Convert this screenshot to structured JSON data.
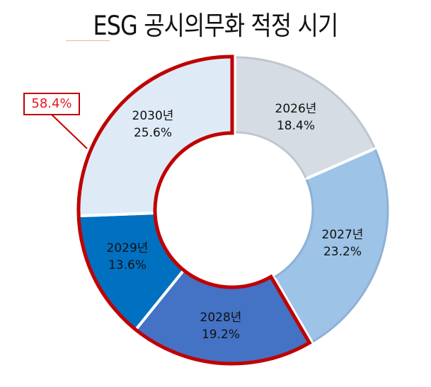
{
  "title": "ESG 공시의무화 적정 시기",
  "callout": {
    "label": "58.4%",
    "color": "#c00000",
    "text_color": "#e8161e"
  },
  "chart_data": {
    "type": "pie",
    "subtype": "donut",
    "title": "ESG 공시의무화 적정 시기",
    "categories": [
      "2026년",
      "2027년",
      "2028년",
      "2029년",
      "2030년"
    ],
    "values": [
      18.4,
      23.2,
      19.2,
      13.6,
      25.6
    ],
    "unit": "%",
    "start_angle_deg": 0,
    "direction": "clockwise",
    "colors": [
      "#d6dce4",
      "#9dc3e6",
      "#4472c4",
      "#0070c0",
      "#deebf7"
    ],
    "highlight_group": {
      "categories": [
        "2028년",
        "2029년",
        "2030년"
      ],
      "total": 58.4,
      "label": "58.4%",
      "outline_color": "#c00000"
    },
    "legend": null,
    "labels": [
      {
        "year": "2026년",
        "pct": "18.4%"
      },
      {
        "year": "2027년",
        "pct": "23.2%"
      },
      {
        "year": "2028년",
        "pct": "19.2%"
      },
      {
        "year": "2029년",
        "pct": "13.6%"
      },
      {
        "year": "2030년",
        "pct": "25.6%"
      }
    ]
  }
}
